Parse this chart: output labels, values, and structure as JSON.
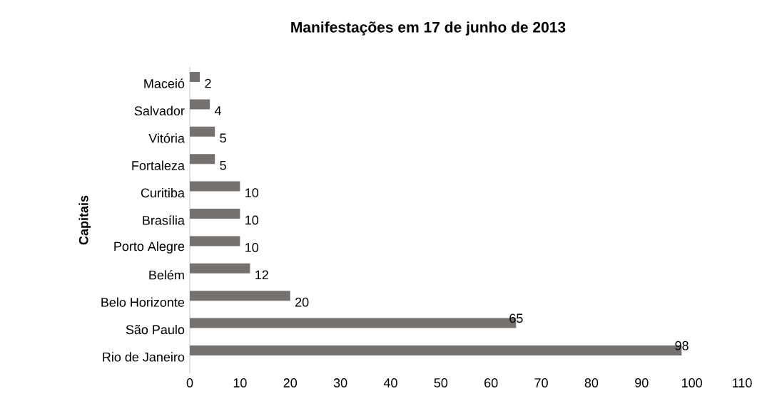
{
  "chart_data": {
    "type": "bar",
    "orientation": "horizontal",
    "title": "Manifestações em 17 de junho de 2013",
    "ylabel": "Capitais",
    "categories": [
      "Maceió",
      "Salvador",
      "Vitória",
      "Fortaleza",
      "Curitiba",
      "Brasília",
      "Porto Alegre",
      "Belém",
      "Belo Horizonte",
      "São Paulo",
      "Rio de Janeiro"
    ],
    "values": [
      2,
      4,
      5,
      5,
      10,
      10,
      10,
      12,
      20,
      65,
      98
    ],
    "color": "#767171",
    "xlim": [
      0,
      110
    ],
    "xticks": [
      0,
      10,
      20,
      30,
      40,
      50,
      60,
      70,
      80,
      90,
      100,
      110
    ],
    "data_labels": true,
    "grid": false
  }
}
